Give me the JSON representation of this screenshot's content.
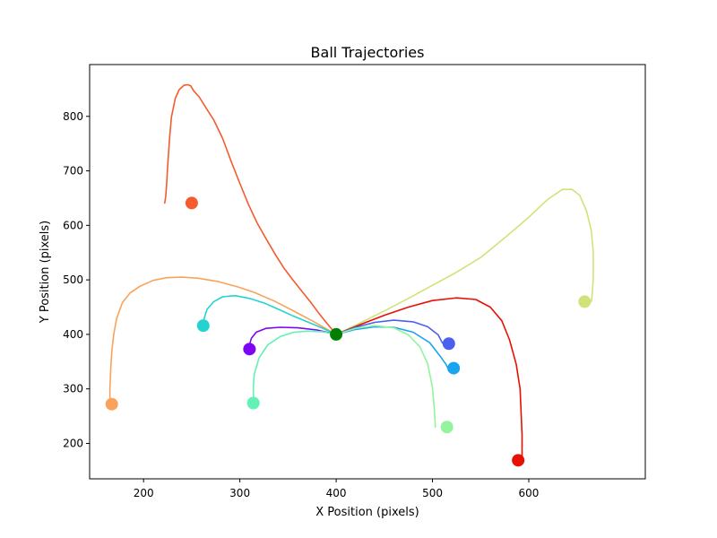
{
  "chart_data": {
    "type": "line",
    "title": "Ball Trajectories",
    "xlabel": "X Position (pixels)",
    "ylabel": "Y Position (pixels)",
    "xlim": [
      144,
      721
    ],
    "ylim": [
      135,
      895
    ],
    "xticks": [
      200,
      300,
      400,
      500,
      600
    ],
    "yticks": [
      200,
      300,
      400,
      500,
      600,
      700,
      800
    ],
    "grid": false,
    "origin": {
      "x": 400,
      "y": 400,
      "color": "#008000"
    },
    "series": [
      {
        "color": "#f45b2e",
        "points": [
          [
            400,
            400
          ],
          [
            391,
            419
          ],
          [
            382,
            439
          ],
          [
            373,
            460
          ],
          [
            364,
            480
          ],
          [
            355,
            500
          ],
          [
            346,
            521
          ],
          [
            337,
            546
          ],
          [
            328,
            573
          ],
          [
            318,
            604
          ],
          [
            309,
            638
          ],
          [
            300,
            677
          ],
          [
            291,
            717
          ],
          [
            282,
            760
          ],
          [
            273,
            793
          ],
          [
            264,
            818
          ],
          [
            258,
            835
          ],
          [
            252,
            847
          ],
          [
            249,
            856
          ],
          [
            246,
            858
          ],
          [
            242,
            857
          ],
          [
            237,
            849
          ],
          [
            233,
            833
          ],
          [
            229,
            799
          ],
          [
            227,
            760
          ],
          [
            225,
            707
          ],
          [
            224,
            677
          ],
          [
            223,
            653
          ],
          [
            222,
            641
          ]
        ],
        "end": [
          250,
          641
        ]
      },
      {
        "color": "#f9a35a",
        "points": [
          [
            400,
            400
          ],
          [
            376,
            424
          ],
          [
            358,
            441
          ],
          [
            336,
            461
          ],
          [
            315,
            477
          ],
          [
            298,
            487
          ],
          [
            277,
            497
          ],
          [
            257,
            503
          ],
          [
            240,
            505
          ],
          [
            224,
            504
          ],
          [
            210,
            499
          ],
          [
            196,
            488
          ],
          [
            186,
            476
          ],
          [
            178,
            458
          ],
          [
            172,
            429
          ],
          [
            169,
            400
          ],
          [
            167,
            368
          ],
          [
            166,
            337
          ],
          [
            165,
            300
          ],
          [
            165,
            272
          ]
        ],
        "end": [
          167,
          272
        ]
      },
      {
        "color": "#24d3cf",
        "points": [
          [
            400,
            400
          ],
          [
            385,
            412
          ],
          [
            370,
            423
          ],
          [
            355,
            434
          ],
          [
            340,
            446
          ],
          [
            326,
            457
          ],
          [
            310,
            466
          ],
          [
            295,
            471
          ],
          [
            282,
            469
          ],
          [
            273,
            460
          ],
          [
            266,
            446
          ],
          [
            263,
            430
          ],
          [
            262,
            416
          ]
        ],
        "end": [
          262,
          416
        ]
      },
      {
        "color": "#7c05f3",
        "points": [
          [
            400,
            400
          ],
          [
            380,
            408
          ],
          [
            360,
            412
          ],
          [
            342,
            413
          ],
          [
            327,
            411
          ],
          [
            317,
            404
          ],
          [
            312,
            393
          ],
          [
            310,
            381
          ],
          [
            310,
            373
          ]
        ],
        "end": [
          310,
          373
        ]
      },
      {
        "color": "#63f1b5",
        "points": [
          [
            400,
            400
          ],
          [
            385,
            405
          ],
          [
            370,
            406
          ],
          [
            356,
            404
          ],
          [
            342,
            396
          ],
          [
            329,
            381
          ],
          [
            320,
            357
          ],
          [
            315,
            327
          ],
          [
            314,
            305
          ],
          [
            314,
            274
          ]
        ],
        "end": [
          314,
          274
        ]
      },
      {
        "color": "#d0e378",
        "points": [
          [
            400,
            400
          ],
          [
            425,
            421
          ],
          [
            450,
            443
          ],
          [
            475,
            466
          ],
          [
            500,
            490
          ],
          [
            525,
            514
          ],
          [
            550,
            541
          ],
          [
            575,
            577
          ],
          [
            600,
            615
          ],
          [
            620,
            648
          ],
          [
            635,
            666
          ],
          [
            645,
            666
          ],
          [
            653,
            655
          ],
          [
            660,
            626
          ],
          [
            665,
            590
          ],
          [
            667,
            550
          ],
          [
            667,
            505
          ],
          [
            666,
            476
          ],
          [
            665,
            460
          ]
        ],
        "end": [
          658,
          460
        ]
      },
      {
        "color": "#e71003",
        "points": [
          [
            400,
            400
          ],
          [
            425,
            418
          ],
          [
            450,
            435
          ],
          [
            475,
            450
          ],
          [
            500,
            462
          ],
          [
            525,
            467
          ],
          [
            545,
            464
          ],
          [
            560,
            450
          ],
          [
            572,
            425
          ],
          [
            580,
            390
          ],
          [
            587,
            345
          ],
          [
            591,
            300
          ],
          [
            592,
            258
          ],
          [
            593,
            215
          ],
          [
            593,
            183
          ],
          [
            593,
            169
          ]
        ],
        "end": [
          589,
          169
        ]
      },
      {
        "color": "#4b60ef",
        "points": [
          [
            400,
            400
          ],
          [
            420,
            413
          ],
          [
            440,
            422
          ],
          [
            460,
            426
          ],
          [
            480,
            423
          ],
          [
            495,
            414
          ],
          [
            506,
            399
          ],
          [
            510,
            385
          ],
          [
            511,
            383
          ]
        ],
        "end": [
          517,
          383
        ]
      },
      {
        "color": "#18a4ee",
        "points": [
          [
            400,
            400
          ],
          [
            420,
            409
          ],
          [
            440,
            414
          ],
          [
            460,
            413
          ],
          [
            480,
            404
          ],
          [
            497,
            385
          ],
          [
            508,
            360
          ],
          [
            514,
            345
          ],
          [
            516,
            338
          ]
        ],
        "end": [
          522,
          338
        ]
      },
      {
        "color": "#93f39f",
        "points": [
          [
            400,
            400
          ],
          [
            420,
            411
          ],
          [
            440,
            416
          ],
          [
            460,
            412
          ],
          [
            475,
            399
          ],
          [
            487,
            377
          ],
          [
            495,
            346
          ],
          [
            500,
            303
          ],
          [
            502,
            260
          ],
          [
            503,
            230
          ]
        ],
        "end": [
          515,
          230
        ]
      }
    ]
  }
}
